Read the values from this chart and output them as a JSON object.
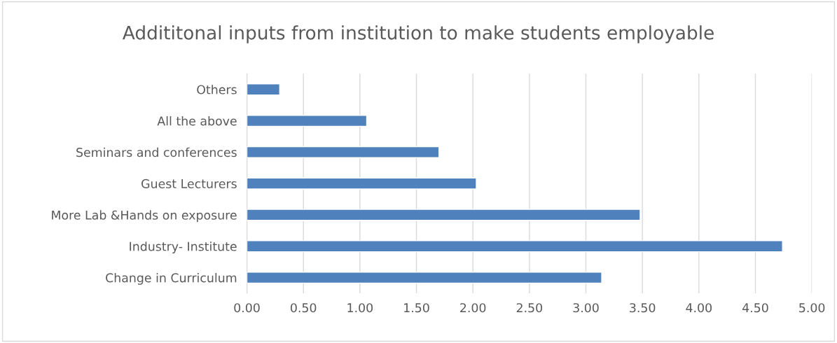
{
  "chart_data": {
    "type": "bar",
    "orientation": "horizontal",
    "title": "Addititonal inputs from institution to make students employable",
    "categories": [
      "Others",
      "All the above",
      "Seminars and conferences",
      "Guest Lecturers",
      "More Lab &Hands on exposure",
      "Industry- Institute",
      "Change in Curriculum"
    ],
    "values": [
      0.29,
      1.06,
      1.7,
      2.03,
      3.48,
      4.74,
      3.14
    ],
    "color": "#4f81bd",
    "xlim": [
      0,
      5
    ],
    "xticks": [
      {
        "value": 0,
        "label": "0.00"
      },
      {
        "value": 0.5,
        "label": "0.50"
      },
      {
        "value": 1,
        "label": "1.00"
      },
      {
        "value": 1.5,
        "label": "1.50"
      },
      {
        "value": 2,
        "label": "2.00"
      },
      {
        "value": 2.5,
        "label": "2.50"
      },
      {
        "value": 3,
        "label": "3.00"
      },
      {
        "value": 3.5,
        "label": "3.50"
      },
      {
        "value": 4,
        "label": "4.00"
      },
      {
        "value": 4.5,
        "label": "4.50"
      },
      {
        "value": 5,
        "label": "5.00"
      }
    ],
    "grid": "x"
  }
}
